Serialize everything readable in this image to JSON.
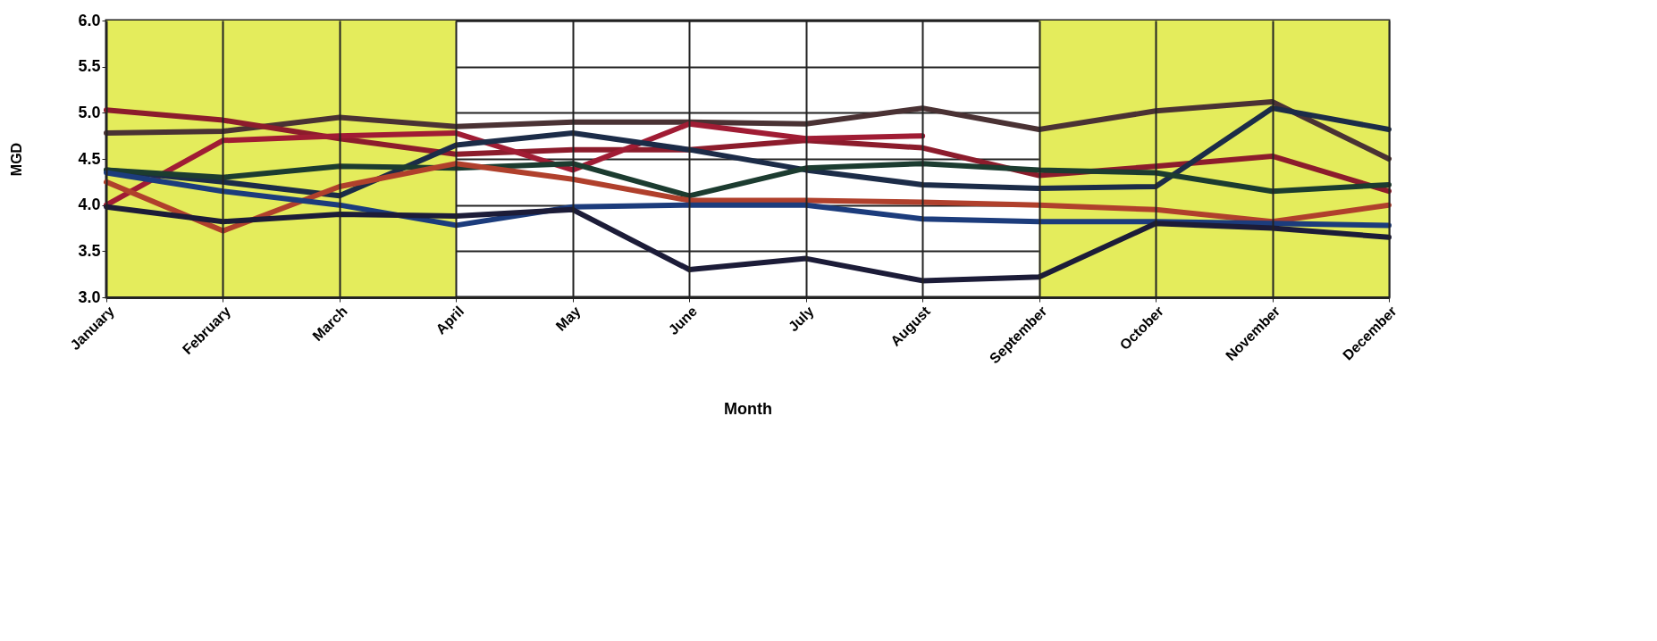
{
  "chart_data": {
    "type": "line",
    "xlabel": "Month",
    "ylabel": "MGD",
    "categories": [
      "January",
      "February",
      "March",
      "April",
      "May",
      "June",
      "July",
      "August",
      "September",
      "October",
      "November",
      "December"
    ],
    "ylim": [
      3,
      6
    ],
    "yticks": [
      {
        "value": 3,
        "label": "3.0"
      },
      {
        "value": 3.5,
        "label": "3.5"
      },
      {
        "value": 4,
        "label": "4.0"
      },
      {
        "value": 4.5,
        "label": "4.5"
      },
      {
        "value": 5,
        "label": "5.0"
      },
      {
        "value": 5.5,
        "label": "5.5"
      },
      {
        "value": 6,
        "label": "6.0"
      }
    ],
    "grid": true,
    "line_style": "solid",
    "bands": [
      {
        "axis": "x",
        "from": "January",
        "to": "April",
        "color": "#e4ec5c"
      },
      {
        "axis": "x",
        "from": "September",
        "to": "December",
        "color": "#e4ec5c"
      }
    ],
    "series": [
      {
        "color": "#4a3234",
        "values": [
          4.78,
          4.8,
          4.95,
          4.85,
          4.9,
          4.9,
          4.88,
          5.05,
          4.82,
          5.02,
          5.12,
          4.5
        ]
      },
      {
        "color": "#8c1c2c",
        "values": [
          5.03,
          4.92,
          4.72,
          4.55,
          4.6,
          4.6,
          4.7,
          4.62,
          4.32,
          4.42,
          4.53,
          4.15
        ]
      },
      {
        "color": "#a01c34",
        "values": [
          4.0,
          4.7,
          4.75,
          4.78,
          4.38,
          4.88,
          4.72,
          4.75,
          null,
          null,
          null,
          null
        ]
      },
      {
        "color": "#1c2c48",
        "values": [
          4.38,
          4.25,
          4.1,
          4.65,
          4.78,
          4.6,
          4.38,
          4.22,
          4.18,
          4.2,
          5.05,
          4.82
        ]
      },
      {
        "color": "#1c3c30",
        "values": [
          4.38,
          4.3,
          4.42,
          4.4,
          4.45,
          4.1,
          4.4,
          4.45,
          4.38,
          4.35,
          4.15,
          4.22
        ]
      },
      {
        "color": "#b0402c",
        "values": [
          4.25,
          3.72,
          4.2,
          4.45,
          4.28,
          4.05,
          4.05,
          4.03,
          4.0,
          3.95,
          3.82,
          4.0
        ]
      },
      {
        "color": "#1c3c7c",
        "values": [
          4.35,
          4.15,
          4.0,
          3.78,
          3.98,
          4.0,
          4.0,
          3.85,
          3.82,
          3.82,
          3.8,
          3.78
        ]
      },
      {
        "color": "#1c1c38",
        "values": [
          3.98,
          3.82,
          3.9,
          3.88,
          3.95,
          3.3,
          3.42,
          3.18,
          3.22,
          3.8,
          3.75,
          3.65
        ]
      }
    ]
  }
}
